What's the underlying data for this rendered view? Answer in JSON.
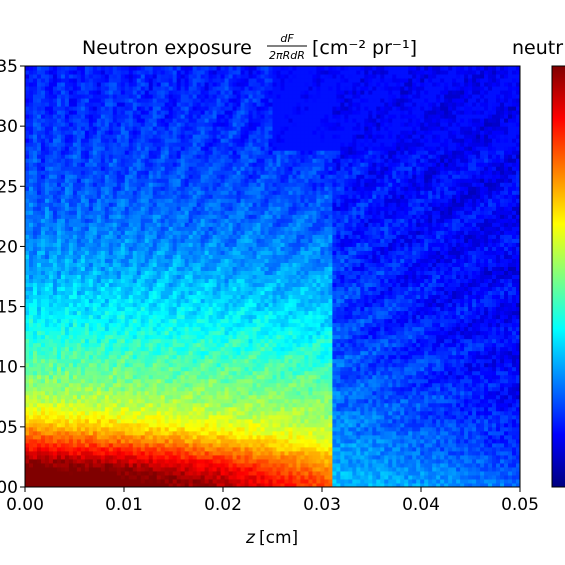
{
  "chart_data": {
    "type": "heatmap",
    "title_main": "Neutron exposure",
    "title_frac_num": "dF",
    "title_frac_den": "2πRdR",
    "title_units": "[cm⁻² pr⁻¹]",
    "colorbar_title_partial": "neutr",
    "xlabel_var": "z",
    "xlabel_unit": "[cm]",
    "ylabel": "",
    "x_ticks": [
      "0.00",
      "0.01",
      "0.02",
      "0.03",
      "0.04",
      "0.05"
    ],
    "y_ticks_partial": [
      "35",
      "30",
      "25",
      "20",
      "15",
      "10",
      "05",
      "00"
    ],
    "xlim": [
      0.0,
      0.05
    ],
    "ylim_cm": [
      0.0,
      0.035
    ],
    "colormap": "jet",
    "grid": false,
    "structure": {
      "hot_core": "high exposure near z 0.000-0.010 cm, R below about 0.005 cm",
      "plateau_edge_z": 0.031,
      "falloff": "exposure decreases with radius R; sharp drop beyond z = 0.031 cm with radial streaks"
    }
  }
}
